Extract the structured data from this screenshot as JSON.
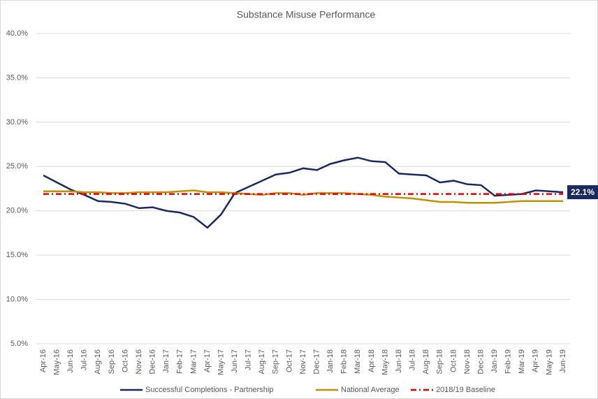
{
  "chart_data": {
    "type": "line",
    "title": "Substance Misuse Performance",
    "categories": [
      "Apr-16",
      "May-16",
      "Jun-16",
      "Jul-16",
      "Aug-16",
      "Sep-16",
      "Oct-16",
      "Nov-16",
      "Dec-16",
      "Jan-17",
      "Feb-17",
      "Mar-17",
      "Apr-17",
      "May-17",
      "Jun-17",
      "Jul-17",
      "Aug-17",
      "Sep-17",
      "Oct-17",
      "Nov-17",
      "Dec-17",
      "Jan-18",
      "Feb-18",
      "Mar-18",
      "Apr-18",
      "May-18",
      "Jun-18",
      "Jul-18",
      "Aug-18",
      "Sep-18",
      "Oct-18",
      "Nov-18",
      "Dec-18",
      "Jan-19",
      "Feb-19",
      "Mar-19",
      "Apr-19",
      "May-19",
      "Jun-19"
    ],
    "series": [
      {
        "name": "Successful Completions - Partnership",
        "color": "#1b2a5e",
        "style": "solid",
        "values": [
          24.0,
          23.2,
          22.4,
          21.8,
          21.1,
          21.0,
          20.8,
          20.3,
          20.4,
          20.0,
          19.8,
          19.3,
          18.1,
          19.6,
          22.0,
          22.7,
          23.4,
          24.1,
          24.3,
          24.8,
          24.6,
          25.3,
          25.7,
          26.0,
          25.6,
          25.5,
          24.2,
          24.1,
          24.0,
          23.2,
          23.4,
          23.0,
          22.9,
          21.7,
          21.8,
          21.9,
          22.3,
          22.2,
          22.1
        ],
        "value_labels": [
          null,
          null,
          null,
          null,
          null,
          null,
          null,
          null,
          null,
          null,
          null,
          null,
          null,
          null,
          null,
          null,
          null,
          null,
          null,
          null,
          null,
          null,
          null,
          null,
          null,
          null,
          null,
          null,
          null,
          null,
          null,
          null,
          null,
          null,
          null,
          null,
          null,
          null,
          "22.1%"
        ]
      },
      {
        "name": "National Average",
        "color": "#bf9000",
        "style": "solid",
        "values": [
          22.2,
          22.2,
          22.2,
          22.1,
          22.1,
          22.0,
          22.0,
          22.1,
          22.1,
          22.1,
          22.2,
          22.3,
          22.1,
          22.1,
          22.0,
          21.9,
          21.8,
          22.0,
          22.0,
          21.8,
          22.0,
          22.0,
          22.0,
          21.9,
          21.8,
          21.6,
          21.5,
          21.4,
          21.2,
          21.0,
          21.0,
          20.9,
          20.9,
          20.9,
          21.0,
          21.1,
          21.1,
          21.1,
          21.1
        ]
      },
      {
        "name": "2018/19 Baseline",
        "color": "#e00000",
        "style": "dashdot",
        "values": [
          21.9,
          21.9,
          21.9,
          21.9,
          21.9,
          21.9,
          21.9,
          21.9,
          21.9,
          21.9,
          21.9,
          21.9,
          21.9,
          21.9,
          21.9,
          21.9,
          21.9,
          21.9,
          21.9,
          21.9,
          21.9,
          21.9,
          21.9,
          21.9,
          21.9,
          21.9,
          21.9,
          21.9,
          21.9,
          21.9,
          21.9,
          21.9,
          21.9,
          21.9,
          21.9,
          21.9,
          21.9,
          21.9,
          21.9
        ]
      }
    ],
    "ylim": [
      5,
      40
    ],
    "yticks": [
      {
        "value": 5,
        "label": "5.0%"
      },
      {
        "value": 10,
        "label": "10.0%"
      },
      {
        "value": 15,
        "label": "15.0%"
      },
      {
        "value": 20,
        "label": "20.0%"
      },
      {
        "value": 25,
        "label": "25.0%"
      },
      {
        "value": 30,
        "label": "30.0%"
      },
      {
        "value": 35,
        "label": "35.0%"
      },
      {
        "value": 40,
        "label": "40.0%"
      }
    ],
    "grid": true,
    "legend": "bottom"
  }
}
